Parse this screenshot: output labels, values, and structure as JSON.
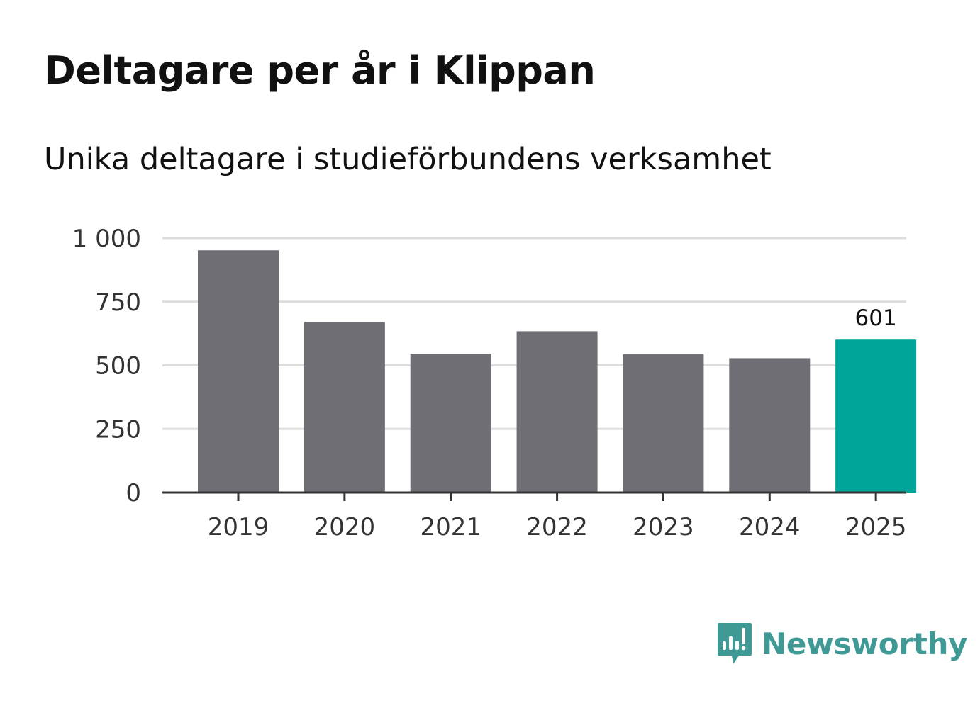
{
  "title": "Deltagare per år i Klippan",
  "subtitle": "Unika deltagare i studieförbundens verksamhet",
  "chart_data": {
    "type": "bar",
    "title": "Deltagare per år i Klippan",
    "subtitle": "Unika deltagare i studieförbundens verksamhet",
    "categories": [
      "2019",
      "2020",
      "2021",
      "2022",
      "2023",
      "2024",
      "2025"
    ],
    "values": [
      952,
      670,
      546,
      634,
      543,
      528,
      601
    ],
    "highlight_index": 6,
    "highlight_label": "601",
    "ylim": [
      0,
      1000
    ],
    "yticks": [
      0,
      250,
      500,
      750,
      1000
    ],
    "ytick_labels": [
      "0",
      "250",
      "500",
      "750",
      "1 000"
    ],
    "xlabel": "",
    "ylabel": "",
    "grid": true
  },
  "colors": {
    "bar": "#6f6e74",
    "highlight": "#00a59a",
    "grid": "#dddddd",
    "axis": "#333333",
    "brand": "#3f9a96"
  },
  "logo": {
    "text": "Newsworthy",
    "icon": "newsworthy-chart-icon"
  }
}
